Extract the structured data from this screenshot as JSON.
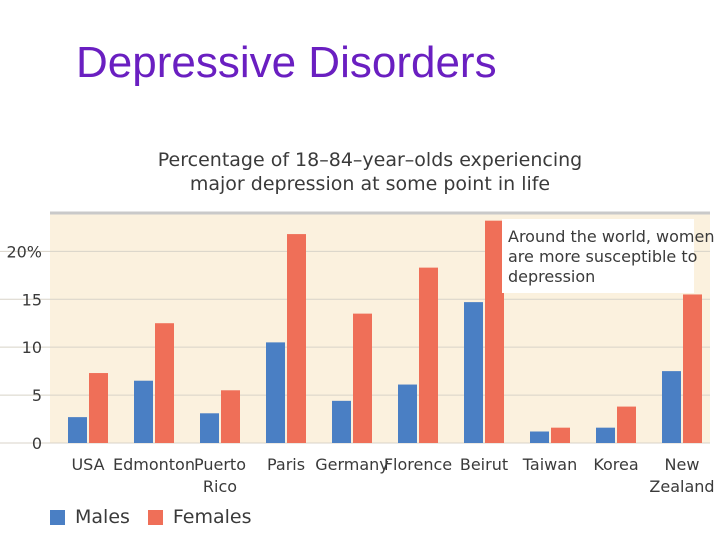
{
  "slide": {
    "title": "Depressive Disorders"
  },
  "chart_heading": {
    "line1": "Percentage of 18–84–year–olds experiencing",
    "line2": "major depression at some point in life"
  },
  "annotation": {
    "lines": [
      "Around the world, women",
      "are more susceptible to",
      "depression"
    ]
  },
  "colors": {
    "males": "#4a7fc4",
    "females": "#ef6f58",
    "plot_background": "#fbf1de",
    "plot_border": "#c9c9c9"
  },
  "chart_data": {
    "type": "bar",
    "title": "Percentage of 18–84–year–olds experiencing major depression at some point in life",
    "categories": [
      [
        "USA"
      ],
      [
        "Edmonton"
      ],
      [
        "Puerto",
        "Rico"
      ],
      [
        "Paris"
      ],
      [
        "Germany"
      ],
      [
        "Florence"
      ],
      [
        "Beirut"
      ],
      [
        "Taiwan"
      ],
      [
        "Korea"
      ],
      [
        "New",
        "Zealand"
      ]
    ],
    "series": [
      {
        "name": "Males",
        "values": [
          2.7,
          6.5,
          3.1,
          10.5,
          4.4,
          6.1,
          14.7,
          1.2,
          1.6,
          7.5
        ]
      },
      {
        "name": "Females",
        "values": [
          7.3,
          12.5,
          5.5,
          21.8,
          13.5,
          18.3,
          23.2,
          1.6,
          3.8,
          15.5
        ]
      }
    ],
    "yticks": [
      "0",
      "5",
      "10",
      "15",
      "20%"
    ],
    "ytick_values": [
      0,
      5,
      10,
      15,
      20
    ],
    "ylim": [
      0,
      24
    ],
    "grid": true,
    "legend_position": "bottom-left"
  }
}
